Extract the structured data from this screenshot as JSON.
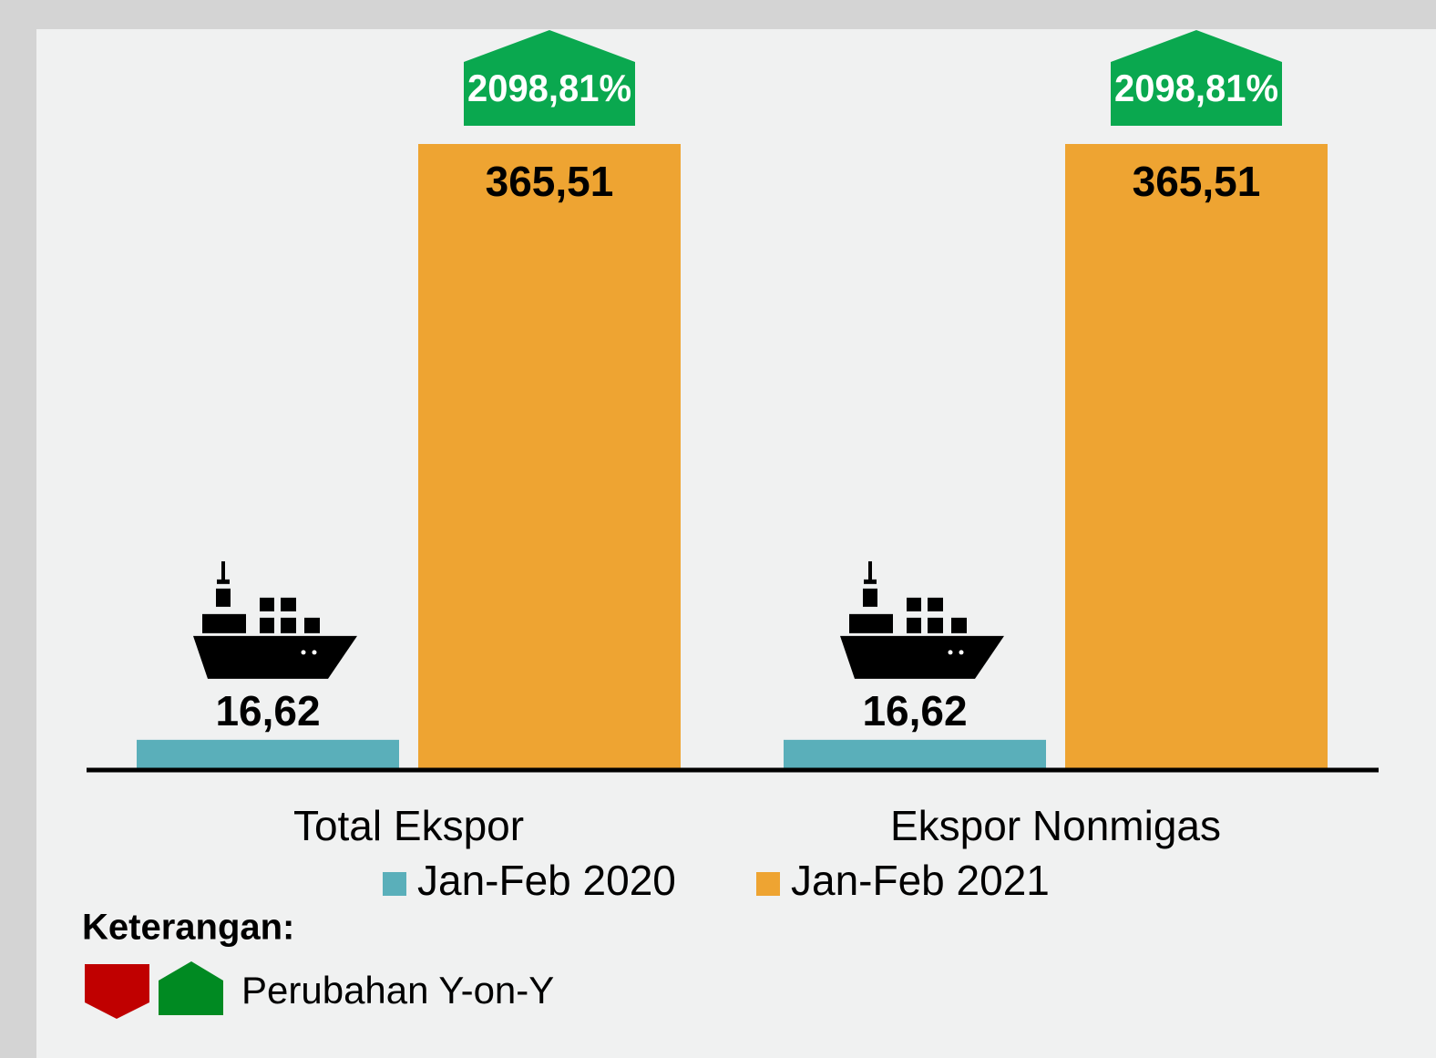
{
  "chart_data": {
    "type": "bar",
    "categories": [
      "Total Ekspor",
      "Ekspor Nonmigas"
    ],
    "series": [
      {
        "name": "Jan-Feb 2020",
        "color": "#5aafba",
        "values": [
          16.62,
          16.62
        ],
        "value_labels": [
          "16,62",
          "16,62"
        ]
      },
      {
        "name": "Jan-Feb 2021",
        "color": "#eea432",
        "values": [
          365.51,
          365.51
        ],
        "value_labels": [
          "365,51",
          "365,51"
        ]
      }
    ],
    "annotations": [
      "2098,81%",
      "2098,81%"
    ],
    "annotation_color": "#0aa84f",
    "legend_title": "Keterangan:",
    "legend_note": "Perubahan Y-on-Y",
    "legend_colors": [
      "#c00000",
      "#008a22"
    ]
  }
}
